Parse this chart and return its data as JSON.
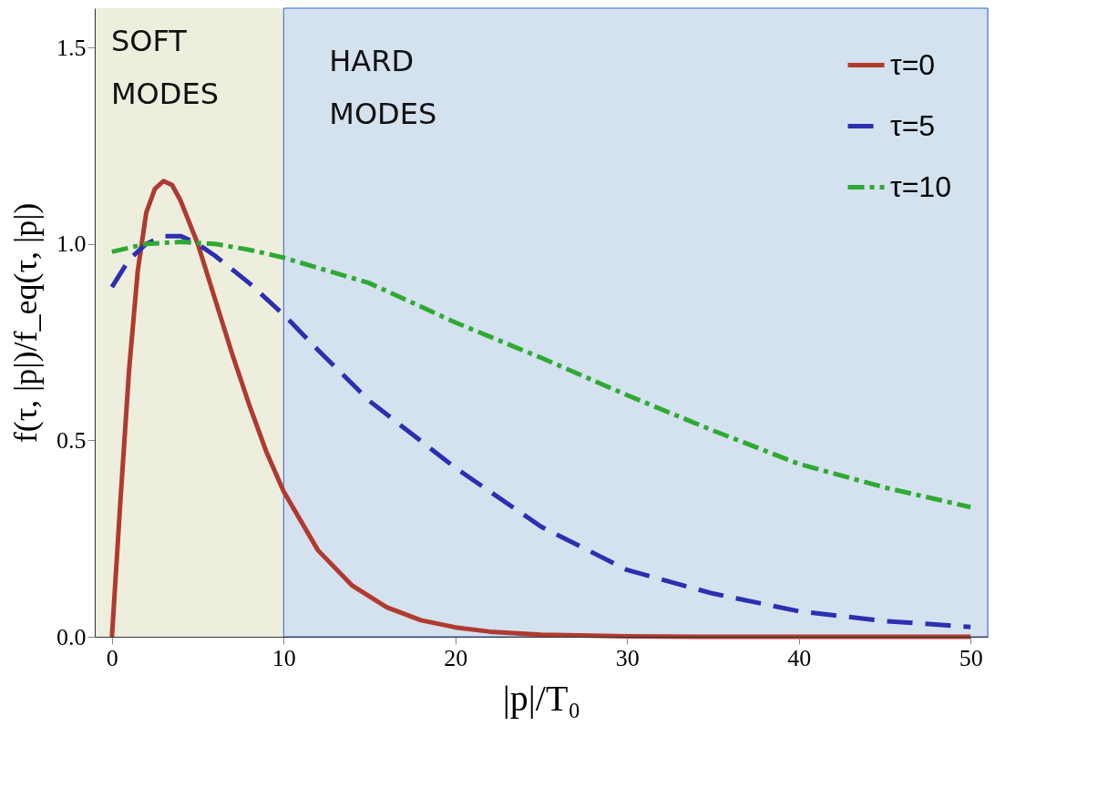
{
  "chart_data": {
    "type": "line",
    "xlabel": "|p|/T₀",
    "ylabel": "f(τ, |p|)/f_eq(τ, |p|)",
    "xlim": [
      -1,
      51
    ],
    "ylim": [
      0,
      1.6
    ],
    "xticks": [
      0,
      10,
      20,
      30,
      40,
      50
    ],
    "yticks": [
      {
        "value": 0,
        "label": "0.0"
      },
      {
        "value": 0.5,
        "label": "0.5"
      },
      {
        "value": 1.0,
        "label": "1.0"
      },
      {
        "value": 1.5,
        "label": "1.5"
      }
    ],
    "grid": false,
    "legend": "top right",
    "bands": [
      {
        "axis": "x",
        "from": -1,
        "to": 10,
        "label": "SOFT MODES",
        "color": "#eeeedf"
      },
      {
        "axis": "x",
        "from": 10,
        "to": 51,
        "label": "HARD MODES",
        "color": "#d4e1ef"
      }
    ],
    "series": [
      {
        "name": "τ=0",
        "color": "#b03a2e",
        "line_style": "solid",
        "x": [
          0,
          0.5,
          1,
          1.5,
          2,
          2.5,
          3,
          3.5,
          4,
          5,
          6,
          7,
          8,
          9,
          10,
          12,
          14,
          16,
          18,
          20,
          22,
          25,
          30,
          35,
          40,
          50
        ],
        "values": [
          0,
          0.35,
          0.68,
          0.93,
          1.08,
          1.14,
          1.16,
          1.15,
          1.11,
          1.0,
          0.86,
          0.72,
          0.59,
          0.47,
          0.37,
          0.22,
          0.13,
          0.075,
          0.042,
          0.024,
          0.013,
          0.005,
          0.001,
          0,
          0,
          0
        ]
      },
      {
        "name": "τ=5",
        "color": "#2b2fb0",
        "line_style": "dashed",
        "x": [
          0,
          1,
          2,
          3,
          4,
          5,
          6,
          8,
          10,
          12,
          15,
          20,
          25,
          30,
          35,
          40,
          45,
          50
        ],
        "values": [
          0.89,
          0.96,
          1.0,
          1.02,
          1.02,
          1.0,
          0.97,
          0.9,
          0.82,
          0.73,
          0.6,
          0.43,
          0.28,
          0.17,
          0.11,
          0.065,
          0.04,
          0.025
        ]
      },
      {
        "name": "τ=10",
        "color": "#2eaa33",
        "line_style": "dotted",
        "x": [
          0,
          2,
          4,
          6,
          8,
          10,
          15,
          20,
          25,
          30,
          35,
          40,
          45,
          50
        ],
        "values": [
          0.98,
          1.0,
          1.005,
          1.0,
          0.985,
          0.965,
          0.9,
          0.8,
          0.71,
          0.615,
          0.525,
          0.44,
          0.38,
          0.33
        ]
      }
    ]
  }
}
